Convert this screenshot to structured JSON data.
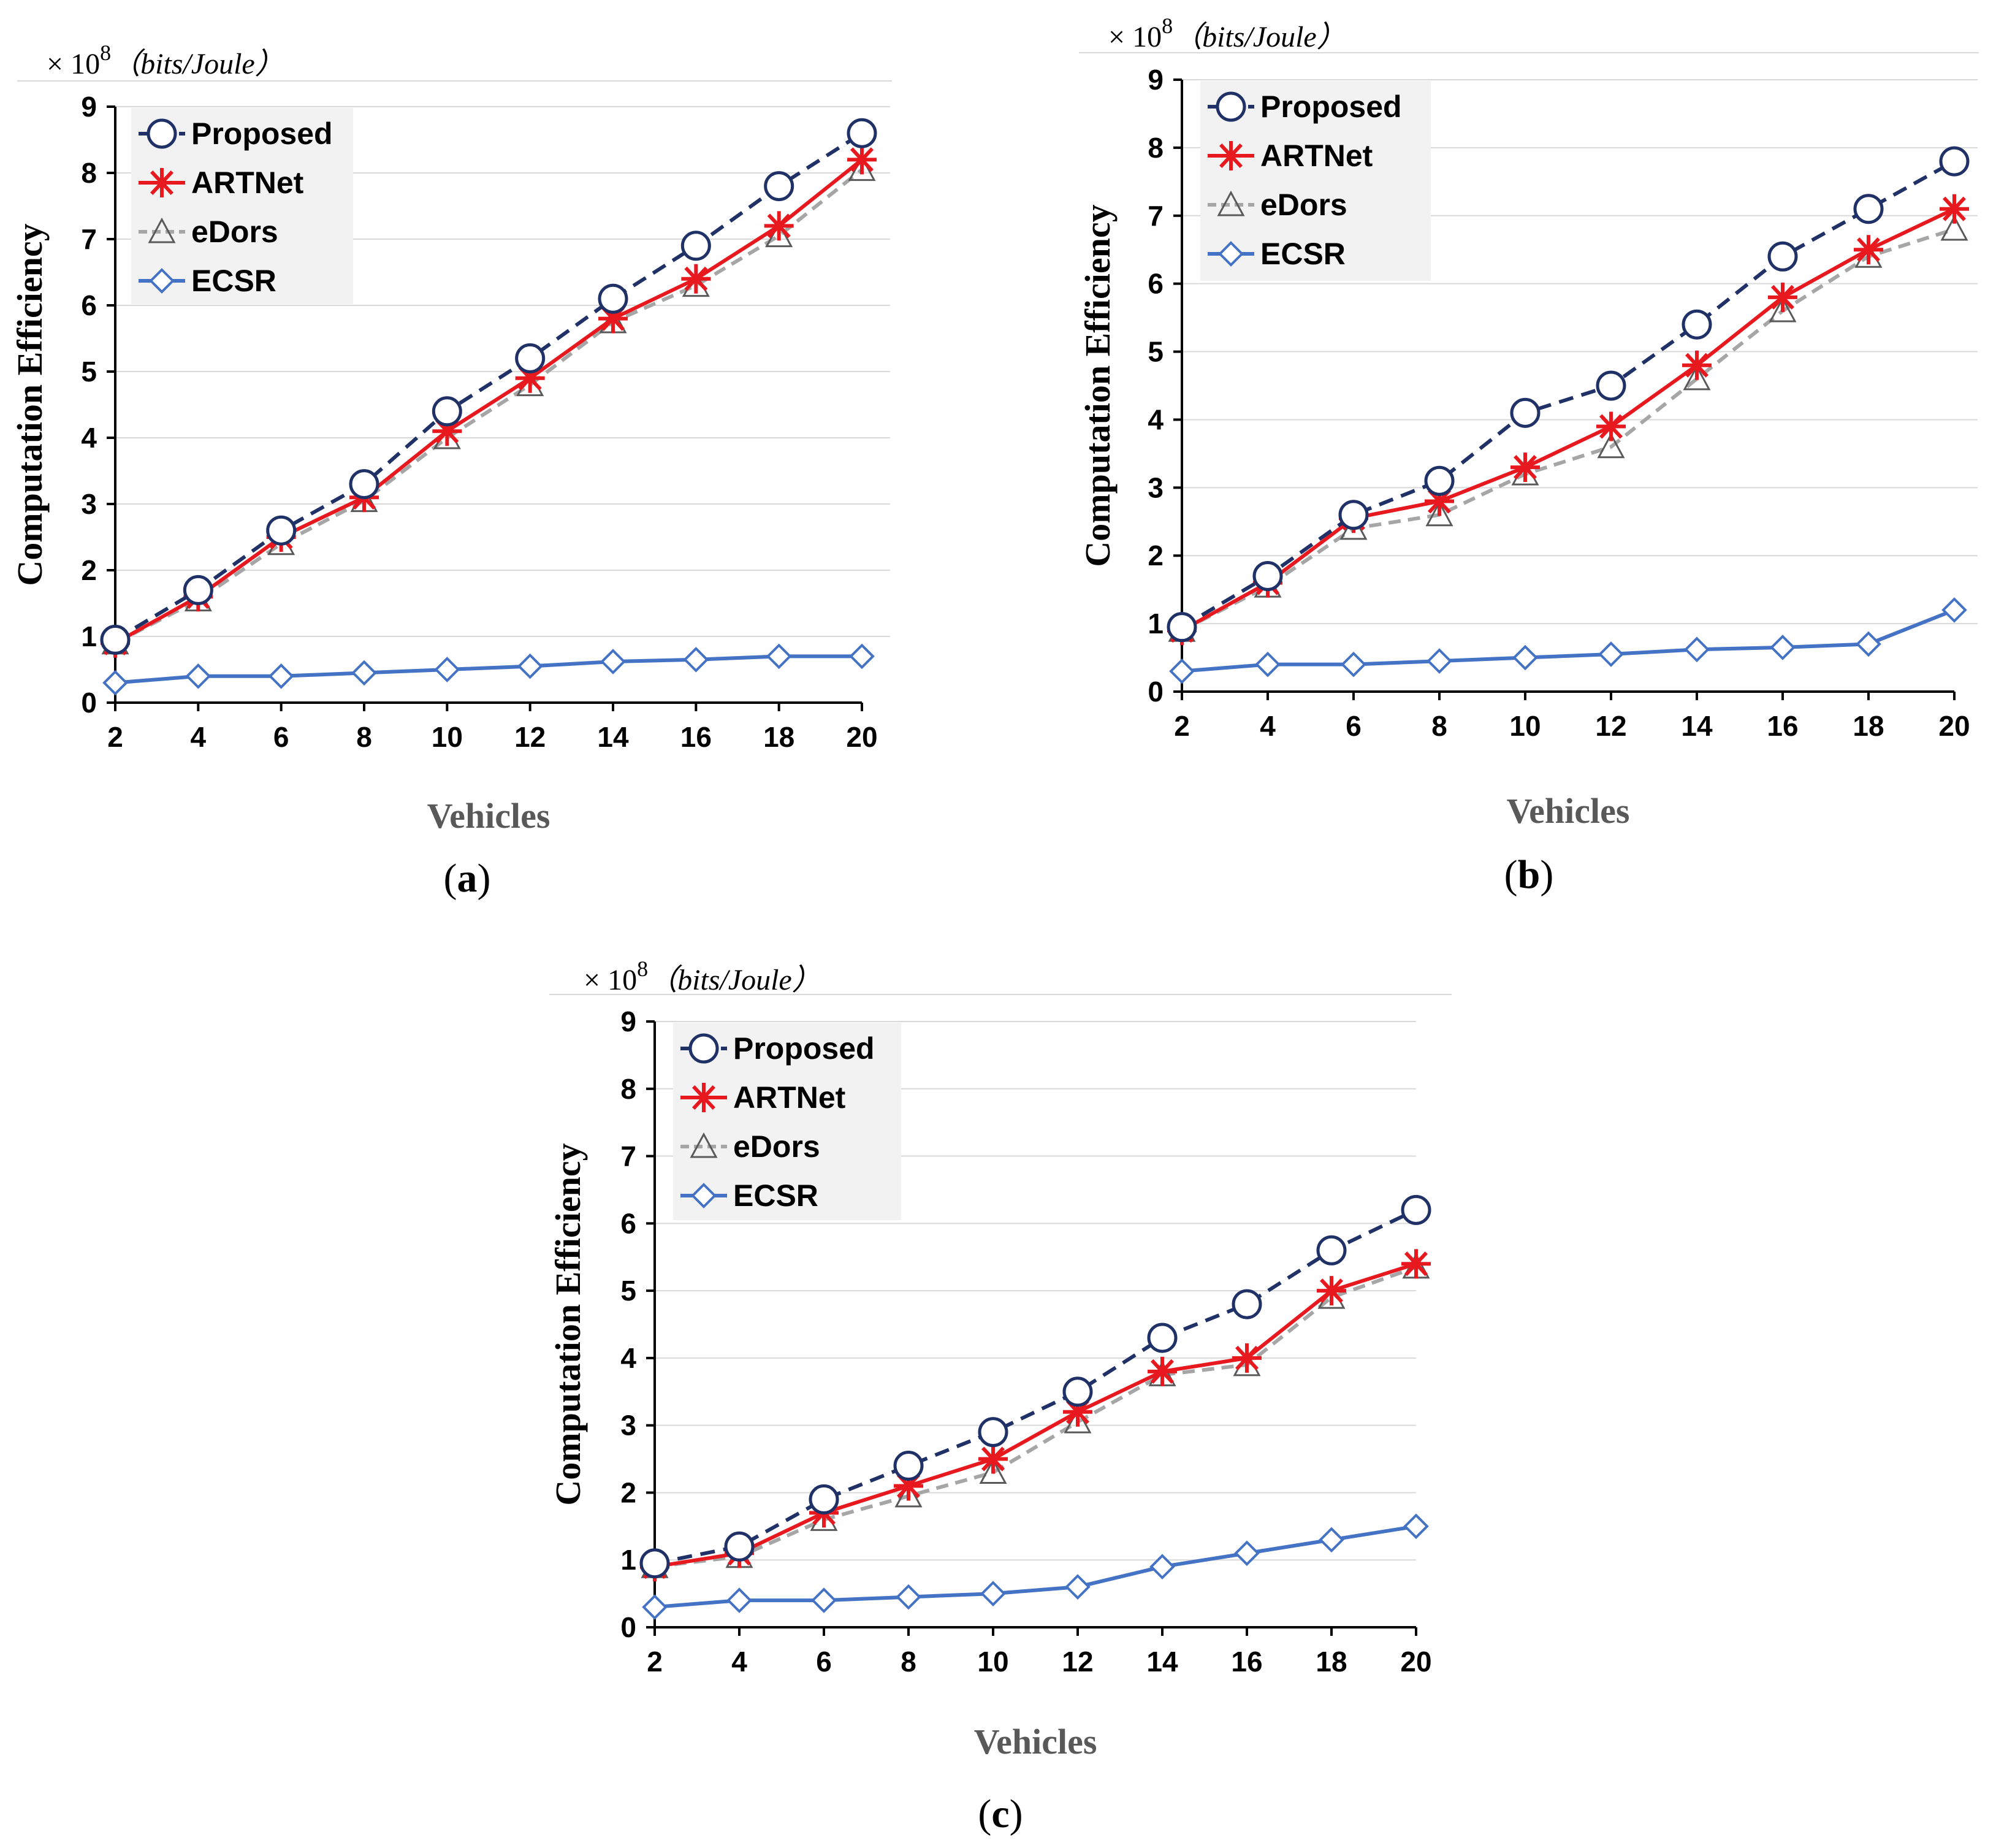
{
  "figure": {
    "unit_prefix": "× 10",
    "unit_exponent": "8",
    "unit_text": "（bits/Joule）",
    "legend_fill": "#f2f2f2"
  },
  "series_style": [
    {
      "name": "Proposed",
      "color": "#1f3166",
      "dash": "24,14",
      "marker": "circle"
    },
    {
      "name": "ARTNet",
      "color": "#e8181f",
      "dash": "",
      "marker": "asterisk"
    },
    {
      "name": "eDors",
      "color": "#a6a6a6",
      "dash": "20,12",
      "marker": "triangle"
    },
    {
      "name": "ECSR",
      "color": "#4472c4",
      "dash": "",
      "marker": "diamond"
    }
  ],
  "chart_data": [
    {
      "type": "line",
      "panel": "a",
      "panel_label": "(a)",
      "title": "",
      "xlabel": "Vehicles",
      "ylabel": "Computation Efficiency",
      "x": [
        2,
        4,
        6,
        8,
        10,
        12,
        14,
        16,
        18,
        20
      ],
      "ylim": [
        0,
        9
      ],
      "yticks": [
        0,
        1,
        2,
        3,
        4,
        5,
        6,
        7,
        8,
        9
      ],
      "grid": true,
      "legend": "top-left",
      "series": [
        {
          "name": "Proposed",
          "values": [
            0.95,
            1.7,
            2.6,
            3.3,
            4.4,
            5.2,
            6.1,
            6.9,
            7.8,
            8.6
          ]
        },
        {
          "name": "ARTNet",
          "values": [
            0.9,
            1.6,
            2.5,
            3.1,
            4.1,
            4.9,
            5.8,
            6.4,
            7.2,
            8.2
          ]
        },
        {
          "name": "eDors",
          "values": [
            0.9,
            1.55,
            2.4,
            3.05,
            4.0,
            4.8,
            5.75,
            6.3,
            7.05,
            8.05
          ]
        },
        {
          "name": "ECSR",
          "values": [
            0.3,
            0.4,
            0.4,
            0.45,
            0.5,
            0.55,
            0.62,
            0.65,
            0.7,
            0.7
          ]
        }
      ]
    },
    {
      "type": "line",
      "panel": "b",
      "panel_label": "(b)",
      "title": "",
      "xlabel": "Vehicles",
      "ylabel": "Computation Efficiency",
      "x": [
        2,
        4,
        6,
        8,
        10,
        12,
        14,
        16,
        18,
        20
      ],
      "ylim": [
        0,
        9
      ],
      "yticks": [
        0,
        1,
        2,
        3,
        4,
        5,
        6,
        7,
        8,
        9
      ],
      "grid": true,
      "legend": "top-left",
      "series": [
        {
          "name": "Proposed",
          "values": [
            0.95,
            1.7,
            2.6,
            3.1,
            4.1,
            4.5,
            5.4,
            6.4,
            7.1,
            7.8
          ]
        },
        {
          "name": "ARTNet",
          "values": [
            0.9,
            1.6,
            2.55,
            2.8,
            3.3,
            3.9,
            4.8,
            5.8,
            6.5,
            7.1
          ]
        },
        {
          "name": "eDors",
          "values": [
            0.9,
            1.55,
            2.4,
            2.6,
            3.2,
            3.6,
            4.6,
            5.6,
            6.4,
            6.8
          ]
        },
        {
          "name": "ECSR",
          "values": [
            0.3,
            0.4,
            0.4,
            0.45,
            0.5,
            0.55,
            0.62,
            0.65,
            0.7,
            1.2
          ]
        }
      ]
    },
    {
      "type": "line",
      "panel": "c",
      "panel_label": "(c)",
      "title": "",
      "xlabel": "Vehicles",
      "ylabel": "Computation Efficiency",
      "x": [
        2,
        4,
        6,
        8,
        10,
        12,
        14,
        16,
        18,
        20
      ],
      "ylim": [
        0,
        9
      ],
      "yticks": [
        0,
        1,
        2,
        3,
        4,
        5,
        6,
        7,
        8,
        9
      ],
      "grid": true,
      "legend": "top-left",
      "series": [
        {
          "name": "Proposed",
          "values": [
            0.95,
            1.2,
            1.9,
            2.4,
            2.9,
            3.5,
            4.3,
            4.8,
            5.6,
            6.2
          ]
        },
        {
          "name": "ARTNet",
          "values": [
            0.9,
            1.1,
            1.7,
            2.1,
            2.5,
            3.2,
            3.8,
            4.0,
            5.0,
            5.4
          ]
        },
        {
          "name": "eDors",
          "values": [
            0.9,
            1.05,
            1.6,
            1.95,
            2.3,
            3.05,
            3.75,
            3.9,
            4.9,
            5.35
          ]
        },
        {
          "name": "ECSR",
          "values": [
            0.3,
            0.4,
            0.4,
            0.45,
            0.5,
            0.6,
            0.9,
            1.1,
            1.3,
            1.5
          ]
        }
      ]
    }
  ]
}
